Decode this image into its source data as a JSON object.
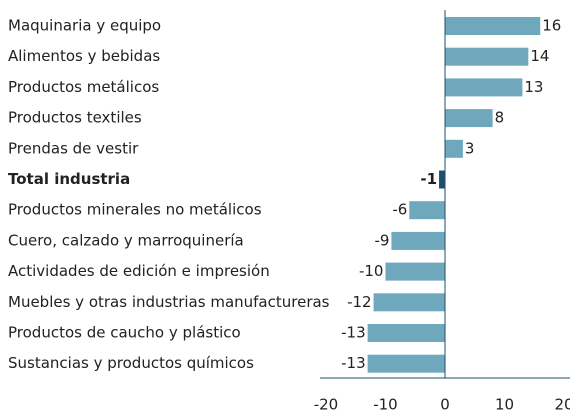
{
  "chart_data": {
    "type": "bar",
    "orientation": "horizontal",
    "categories": [
      "Maquinaria y equipo",
      "Alimentos y bebidas",
      "Productos metálicos",
      "Productos textiles",
      "Prendas de vestir",
      "Total industria",
      "Productos minerales no metálicos",
      "Cuero, calzado y marroquinería",
      "Actividades de edición e impresión",
      "Muebles y otras industrias manufactureras",
      "Productos de caucho y plástico",
      "Sustancias y productos químicos"
    ],
    "values": [
      16,
      14,
      13,
      8,
      3,
      -1,
      -6,
      -9,
      -10,
      -12,
      -13,
      -13
    ],
    "color": "#6fa7bd",
    "highlight": {
      "index": 5,
      "color": "#1d4e6e",
      "bold": true
    },
    "xlim": [
      -21,
      21
    ],
    "xticks": [
      -20,
      -10,
      0,
      10,
      20
    ],
    "grid": false
  }
}
